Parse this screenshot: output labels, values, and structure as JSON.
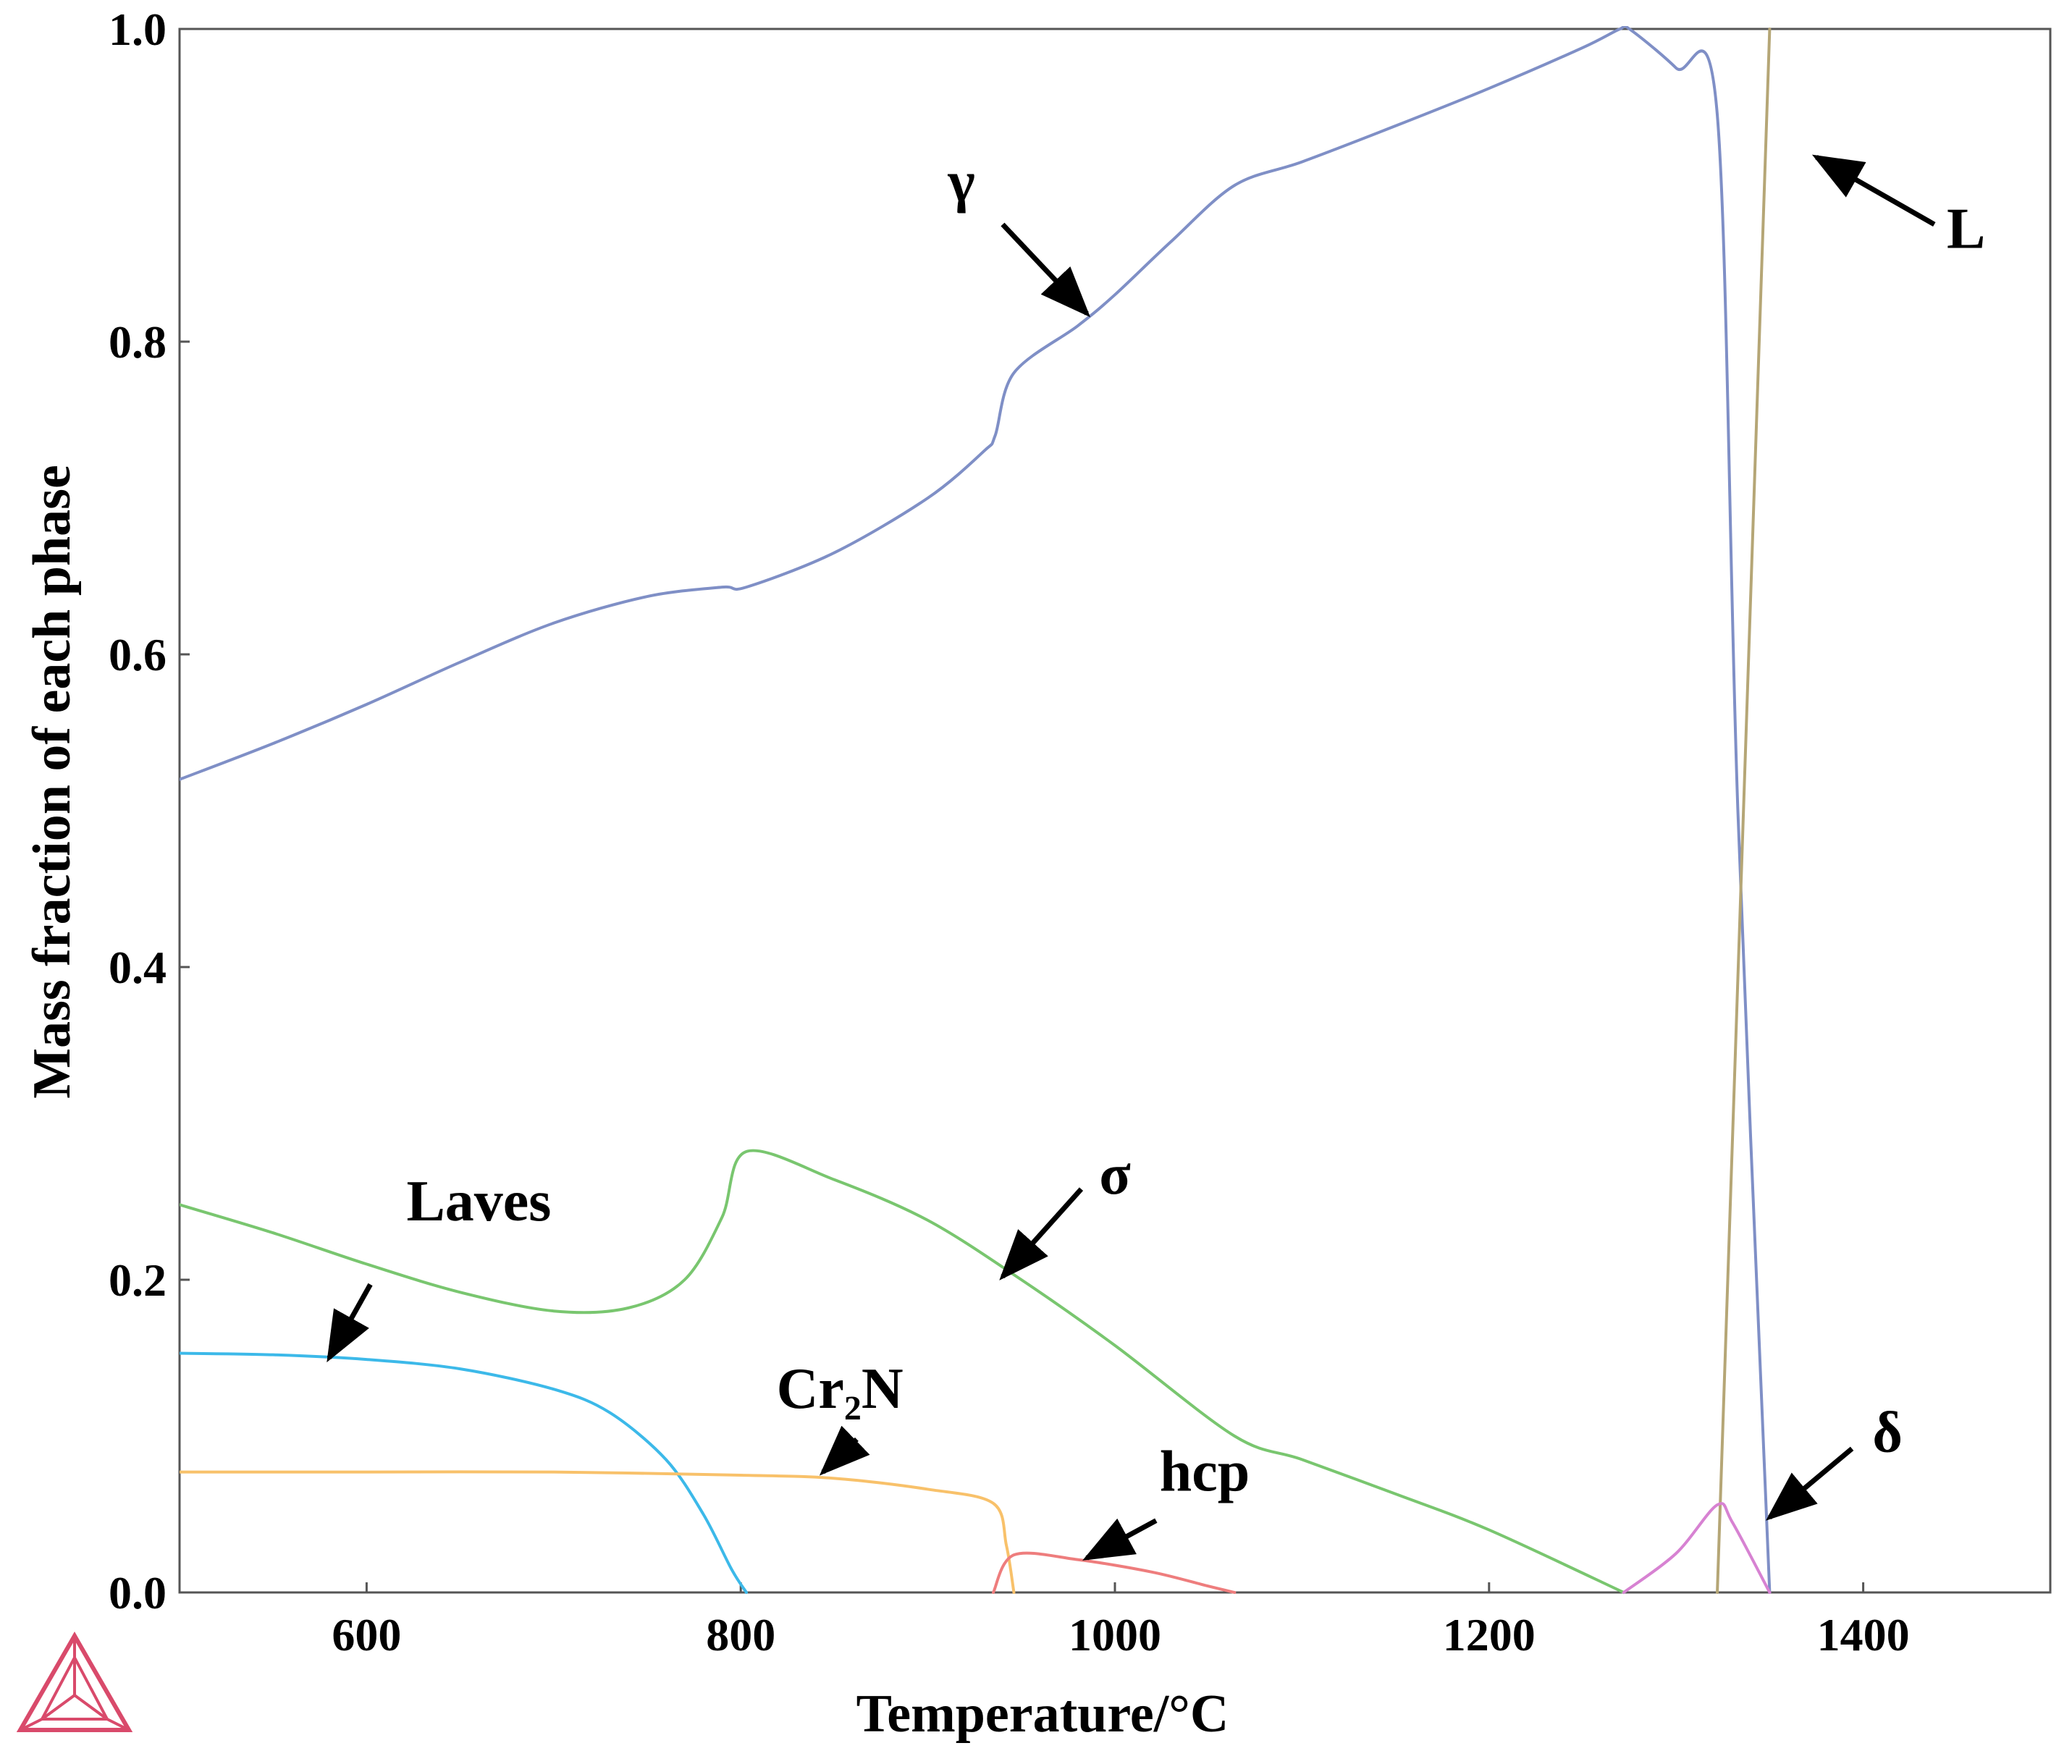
{
  "chart_data": {
    "type": "line",
    "title": "",
    "xlabel": "Temperature/°C",
    "ylabel": "Mass fraction of each phase",
    "xlim": [
      500,
      1500
    ],
    "ylim": [
      0.0,
      1.0
    ],
    "xticks": [
      600,
      800,
      1000,
      1200,
      1400
    ],
    "yticks": [
      0.0,
      0.2,
      0.4,
      0.6,
      0.8,
      1.0
    ],
    "xtick_labels": [
      "600",
      "800",
      "1000",
      "1200",
      "1400"
    ],
    "ytick_labels": [
      "0.0",
      "0.2",
      "0.4",
      "0.6",
      "0.8",
      "1.0"
    ],
    "grid": false,
    "legend": "none",
    "series": [
      {
        "name": "γ",
        "color": "#7f8fc6",
        "points": [
          [
            500,
            0.52
          ],
          [
            550,
            0.543
          ],
          [
            600,
            0.568
          ],
          [
            650,
            0.595
          ],
          [
            700,
            0.62
          ],
          [
            750,
            0.637
          ],
          [
            790,
            0.643
          ],
          [
            803,
            0.643
          ],
          [
            850,
            0.665
          ],
          [
            900,
            0.7
          ],
          [
            930,
            0.73
          ],
          [
            936,
            0.74
          ],
          [
            946,
            0.78
          ],
          [
            980,
            0.81
          ],
          [
            1000,
            0.83
          ],
          [
            1030,
            0.864
          ],
          [
            1064,
            0.9
          ],
          [
            1100,
            0.915
          ],
          [
            1150,
            0.938
          ],
          [
            1200,
            0.962
          ],
          [
            1250,
            0.988
          ],
          [
            1270,
            1.0
          ],
          [
            1275,
            1.0
          ],
          [
            1300,
            0.975
          ],
          [
            1322,
            0.945
          ],
          [
            1333,
            0.5
          ],
          [
            1350,
            0.0
          ]
        ]
      },
      {
        "name": "L",
        "color": "#b5a676",
        "points": [
          [
            1322,
            0.0
          ],
          [
            1350,
            1.0
          ]
        ]
      },
      {
        "name": "σ",
        "color": "#79c66f",
        "points": [
          [
            500,
            0.248
          ],
          [
            550,
            0.23
          ],
          [
            600,
            0.21
          ],
          [
            650,
            0.192
          ],
          [
            700,
            0.18
          ],
          [
            740,
            0.182
          ],
          [
            770,
            0.2
          ],
          [
            790,
            0.24
          ],
          [
            803,
            0.282
          ],
          [
            850,
            0.264
          ],
          [
            900,
            0.238
          ],
          [
            950,
            0.2
          ],
          [
            1000,
            0.158
          ],
          [
            1064,
            0.1
          ],
          [
            1100,
            0.085
          ],
          [
            1150,
            0.063
          ],
          [
            1200,
            0.04
          ],
          [
            1272,
            0.0
          ]
        ]
      },
      {
        "name": "Laves",
        "color": "#3cb9e9",
        "points": [
          [
            500,
            0.153
          ],
          [
            550,
            0.152
          ],
          [
            600,
            0.149
          ],
          [
            650,
            0.143
          ],
          [
            700,
            0.13
          ],
          [
            730,
            0.115
          ],
          [
            760,
            0.085
          ],
          [
            780,
            0.05
          ],
          [
            795,
            0.015
          ],
          [
            803,
            0.0
          ]
        ]
      },
      {
        "name": "Cr₂N",
        "color": "#f8c16a",
        "points": [
          [
            500,
            0.077
          ],
          [
            600,
            0.077
          ],
          [
            700,
            0.077
          ],
          [
            800,
            0.075
          ],
          [
            850,
            0.073
          ],
          [
            900,
            0.066
          ],
          [
            935,
            0.057
          ],
          [
            942,
            0.03
          ],
          [
            946,
            0.0
          ]
        ]
      },
      {
        "name": "hcp",
        "color": "#ee7d7d",
        "points": [
          [
            935,
            0.0
          ],
          [
            946,
            0.024
          ],
          [
            980,
            0.021
          ],
          [
            1020,
            0.013
          ],
          [
            1050,
            0.004
          ],
          [
            1064,
            0.0
          ]
        ]
      },
      {
        "name": "δ",
        "color": "#d782d2",
        "points": [
          [
            1272,
            0.0
          ],
          [
            1300,
            0.025
          ],
          [
            1322,
            0.056
          ],
          [
            1330,
            0.045
          ],
          [
            1350,
            0.0
          ]
        ]
      }
    ],
    "annotations": [
      {
        "label": "γ",
        "text_at": [
          918,
          0.89
        ],
        "arrow_from": [
          940,
          0.875
        ],
        "arrow_to": [
          985,
          0.818
        ]
      },
      {
        "label": "L",
        "text_at": [
          1455,
          0.86
        ],
        "arrow_from": [
          1438,
          0.875
        ],
        "arrow_to": [
          1375,
          0.918
        ]
      },
      {
        "label": "σ",
        "text_at": [
          1000,
          0.255
        ],
        "arrow_from": [
          982,
          0.258
        ],
        "arrow_to": [
          940,
          0.202
        ]
      },
      {
        "label": "Laves",
        "text_at": [
          660,
          0.238
        ],
        "arrow_from": [
          602,
          0.197
        ],
        "arrow_to": [
          580,
          0.15
        ]
      },
      {
        "label": "Cr₂N",
        "text_at": [
          853,
          0.118
        ],
        "arrow_from": [
          862,
          0.098
        ],
        "arrow_to": [
          844,
          0.077
        ]
      },
      {
        "label": "hcp",
        "text_at": [
          1048,
          0.065
        ],
        "arrow_from": [
          1022,
          0.046
        ],
        "arrow_to": [
          985,
          0.022
        ]
      },
      {
        "label": "δ",
        "text_at": [
          1413,
          0.09
        ],
        "arrow_from": [
          1394,
          0.092
        ],
        "arrow_to": [
          1350,
          0.048
        ]
      }
    ]
  }
}
